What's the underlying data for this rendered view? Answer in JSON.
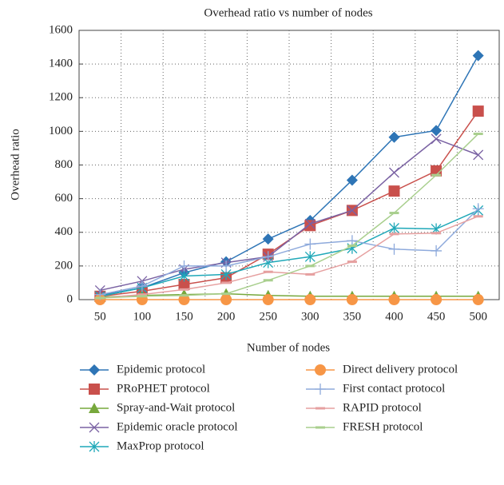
{
  "chart_data": {
    "type": "line",
    "title": "Overhead ratio vs number of nodes",
    "x_label": "Number of nodes",
    "y_label": "Overhead ratio",
    "categories": [
      "50",
      "100",
      "150",
      "200",
      "250",
      "300",
      "350",
      "400",
      "450",
      "500"
    ],
    "ylim": [
      0,
      1600
    ],
    "yticks": [
      0,
      200,
      400,
      600,
      800,
      1000,
      1200,
      1400,
      1600
    ],
    "grid": true,
    "series": [
      {
        "name": "Epidemic protocol",
        "color": "#2e75b6",
        "marker": "diamond",
        "values": [
          25,
          70,
          160,
          225,
          360,
          470,
          710,
          965,
          1005,
          1450
        ]
      },
      {
        "name": "PRoPHET protocol",
        "color": "#c9504c",
        "marker": "square",
        "values": [
          20,
          50,
          90,
          130,
          270,
          440,
          530,
          645,
          765,
          1120
        ]
      },
      {
        "name": "Spray-and-Wait protocol",
        "color": "#77a83c",
        "marker": "triangle",
        "values": [
          15,
          25,
          30,
          35,
          25,
          20,
          20,
          20,
          20,
          20
        ]
      },
      {
        "name": "Epidemic oracle protocol",
        "color": "#7a62a3",
        "marker": "x",
        "values": [
          55,
          110,
          180,
          220,
          255,
          450,
          530,
          755,
          955,
          860
        ]
      },
      {
        "name": "MaxProp protocol",
        "color": "#1fa8b8",
        "marker": "star",
        "values": [
          20,
          70,
          140,
          150,
          220,
          255,
          305,
          425,
          420,
          530
        ]
      },
      {
        "name": "Direct delivery protocol",
        "color": "#f79646",
        "marker": "circle",
        "values": [
          0,
          0,
          0,
          0,
          0,
          0,
          0,
          0,
          0,
          0
        ]
      },
      {
        "name": "First contact protocol",
        "color": "#8eaadc",
        "marker": "plus",
        "values": [
          30,
          80,
          200,
          200,
          255,
          330,
          350,
          300,
          290,
          540
        ]
      },
      {
        "name": "RAPID protocol",
        "color": "#e6a0a0",
        "marker": "dash",
        "values": [
          10,
          30,
          60,
          100,
          165,
          150,
          225,
          390,
          395,
          495
        ]
      },
      {
        "name": "FRESH protocol",
        "color": "#a9cf8e",
        "marker": "dash",
        "values": [
          10,
          20,
          25,
          35,
          115,
          200,
          320,
          515,
          740,
          985
        ]
      }
    ]
  }
}
